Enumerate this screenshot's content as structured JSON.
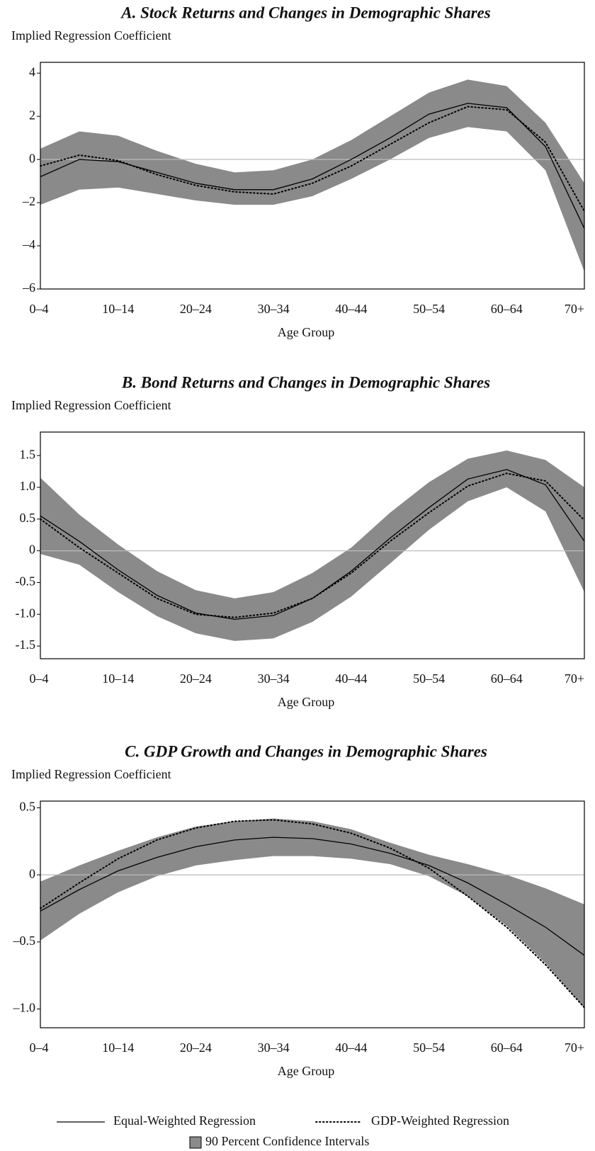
{
  "chart_data": [
    {
      "type": "line",
      "title": "A. Stock Returns and Changes in Demographic Shares",
      "y_label": "Implied Regression Coefficient",
      "x_label": "Age Group",
      "categories": [
        "0–4",
        null,
        "10–14",
        null,
        "20–24",
        null,
        "30–34",
        null,
        "40–44",
        null,
        "50–54",
        null,
        "60–64",
        null,
        "70+"
      ],
      "ylim": [
        -6,
        4.5
      ],
      "yticks": [
        {
          "value": -6,
          "label": "–6"
        },
        {
          "value": -4,
          "label": "–4"
        },
        {
          "value": -2,
          "label": "–2"
        },
        0,
        2,
        4
      ],
      "zero_line": true,
      "band": {
        "name": "90 Percent Confidence Intervals",
        "color": "#8a8a8a",
        "upper": [
          0.5,
          1.3,
          1.1,
          0.4,
          -0.2,
          -0.6,
          -0.5,
          0.0,
          0.9,
          2.0,
          3.1,
          3.7,
          3.4,
          1.7,
          -1.1
        ],
        "lower": [
          -2.1,
          -1.4,
          -1.3,
          -1.6,
          -1.9,
          -2.1,
          -2.1,
          -1.7,
          -0.9,
          0.0,
          1.0,
          1.5,
          1.3,
          -0.5,
          -5.2
        ]
      },
      "series": [
        {
          "name": "Equal-Weighted Regression",
          "color": "#000000",
          "style": "solid",
          "values": [
            -0.8,
            0.0,
            -0.1,
            -0.6,
            -1.1,
            -1.4,
            -1.4,
            -0.9,
            0.0,
            1.0,
            2.1,
            2.6,
            2.4,
            0.6,
            -3.2
          ]
        },
        {
          "name": "GDP-Weighted Regression",
          "color": "#000000",
          "style": "dotted",
          "values": [
            -0.3,
            0.2,
            -0.05,
            -0.7,
            -1.2,
            -1.5,
            -1.6,
            -1.1,
            -0.3,
            0.7,
            1.7,
            2.45,
            2.3,
            0.8,
            -2.4
          ]
        }
      ]
    },
    {
      "type": "line",
      "title": "B. Bond Returns and Changes in Demographic Shares",
      "y_label": "Implied Regression Coefficient",
      "x_label": "Age Group",
      "categories": [
        "0–4",
        null,
        "10–14",
        null,
        "20–24",
        null,
        "30–34",
        null,
        "40–44",
        null,
        "50–54",
        null,
        "60–64",
        null,
        "70+"
      ],
      "ylim": [
        -1.7,
        1.87
      ],
      "yticks": [
        {
          "value": -1.5,
          "label": "-1.5"
        },
        {
          "value": -1.0,
          "label": "-1.0"
        },
        {
          "value": -0.5,
          "label": "-0.5"
        },
        0,
        0.5,
        {
          "value": 1.0,
          "label": "1.0"
        },
        1.5
      ],
      "zero_line": true,
      "band": {
        "color": "#8a8a8a",
        "upper": [
          1.15,
          0.57,
          0.1,
          -0.32,
          -0.62,
          -0.75,
          -0.65,
          -0.35,
          0.05,
          0.6,
          1.08,
          1.45,
          1.58,
          1.43,
          1.0
        ],
        "lower": [
          -0.05,
          -0.22,
          -0.65,
          -1.03,
          -1.3,
          -1.42,
          -1.38,
          -1.12,
          -0.72,
          -0.2,
          0.33,
          0.78,
          1.0,
          0.62,
          -0.65
        ]
      },
      "series": [
        {
          "color": "#000000",
          "style": "solid",
          "values": [
            0.55,
            0.15,
            -0.3,
            -0.7,
            -0.98,
            -1.08,
            -1.02,
            -0.75,
            -0.32,
            0.2,
            0.68,
            1.13,
            1.28,
            1.04,
            0.15
          ]
        },
        {
          "color": "#000000",
          "style": "dotted",
          "values": [
            0.5,
            0.05,
            -0.35,
            -0.75,
            -1.0,
            -1.05,
            -0.98,
            -0.75,
            -0.35,
            0.15,
            0.6,
            1.02,
            1.22,
            1.1,
            0.48
          ]
        }
      ]
    },
    {
      "type": "line",
      "title": "C. GDP Growth and Changes in Demographic Shares",
      "y_label": "Implied Regression Coefficient",
      "x_label": "Age Group",
      "categories": [
        "0–4",
        null,
        "10–14",
        null,
        "20–24",
        null,
        "30–34",
        null,
        "40–44",
        null,
        "50–54",
        null,
        "60–64",
        null,
        "70+"
      ],
      "ylim": [
        -1.14,
        0.55
      ],
      "yticks": [
        {
          "value": -1.0,
          "label": "–1.0"
        },
        {
          "value": -0.5,
          "label": "–0.5"
        },
        0,
        0.5
      ],
      "zero_line": true,
      "band": {
        "color": "#8a8a8a",
        "upper": [
          -0.05,
          0.07,
          0.18,
          0.28,
          0.36,
          0.4,
          0.42,
          0.4,
          0.34,
          0.24,
          0.15,
          0.08,
          0.0,
          -0.1,
          -0.22
        ],
        "lower": [
          -0.49,
          -0.29,
          -0.13,
          -0.01,
          0.07,
          0.11,
          0.14,
          0.14,
          0.12,
          0.08,
          -0.01,
          -0.16,
          -0.38,
          -0.66,
          -0.99
        ]
      },
      "series": [
        {
          "color": "#000000",
          "style": "solid",
          "values": [
            -0.27,
            -0.11,
            0.03,
            0.13,
            0.21,
            0.26,
            0.28,
            0.27,
            0.23,
            0.16,
            0.07,
            -0.06,
            -0.22,
            -0.39,
            -0.6
          ]
        },
        {
          "color": "#000000",
          "style": "dotted",
          "values": [
            -0.25,
            -0.06,
            0.12,
            0.26,
            0.35,
            0.4,
            0.41,
            0.38,
            0.31,
            0.2,
            0.05,
            -0.16,
            -0.39,
            -0.67,
            -0.99
          ]
        }
      ]
    }
  ]
}
